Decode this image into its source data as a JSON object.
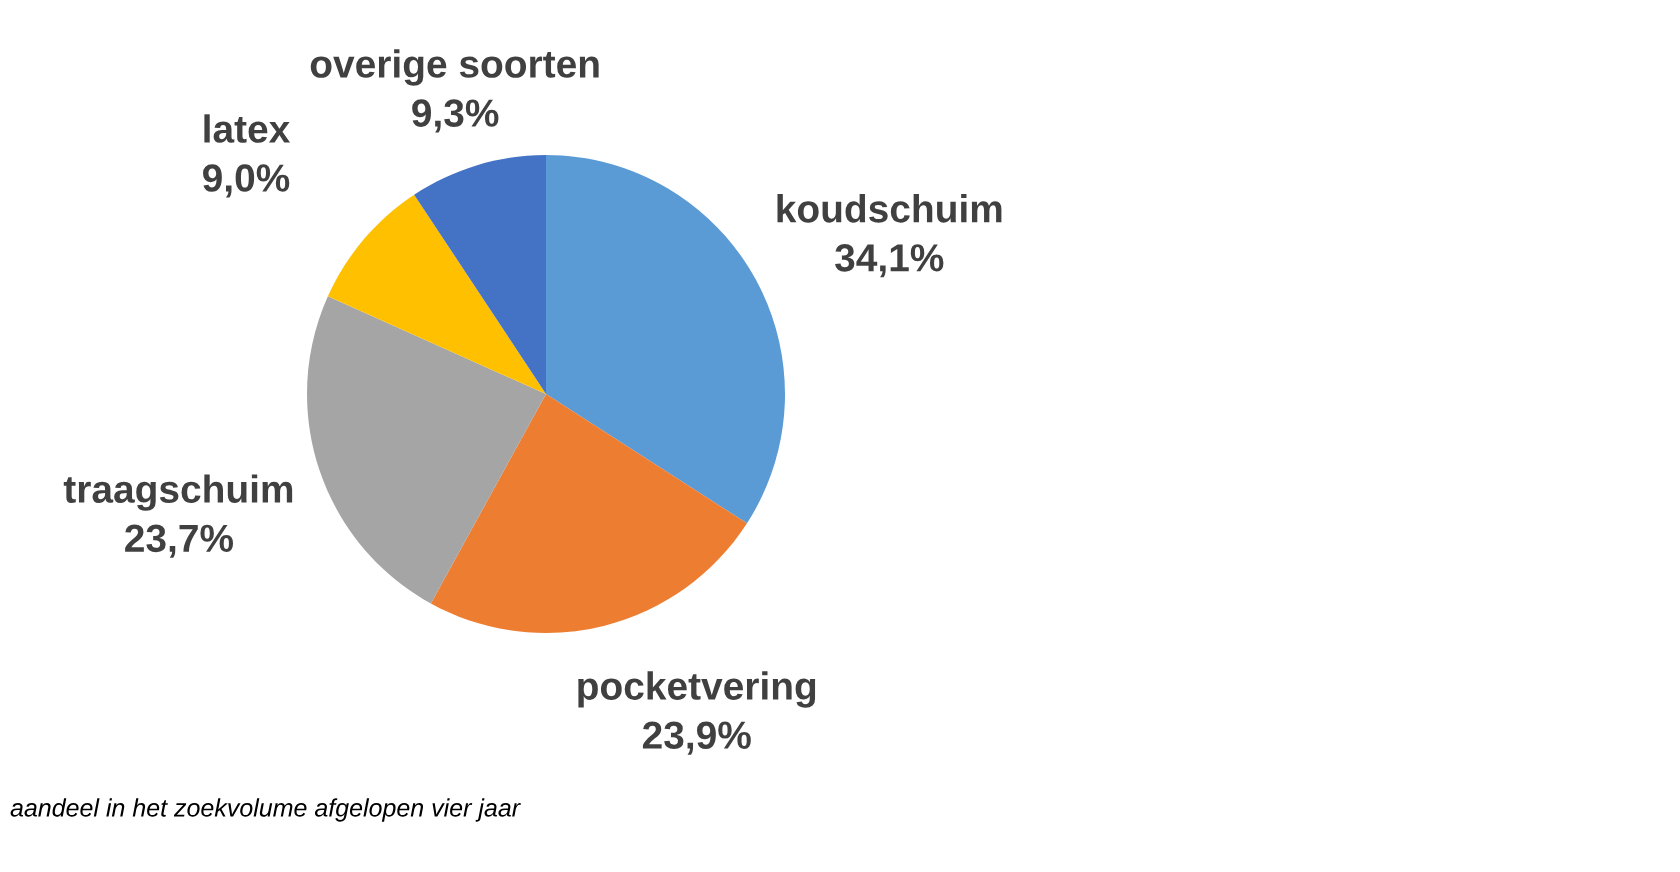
{
  "chart_data": {
    "type": "pie",
    "categories": [
      "koudschuim",
      "pocketvering",
      "traagschuim",
      "latex",
      "overige soorten"
    ],
    "values": [
      34.1,
      23.9,
      23.7,
      9.0,
      9.3
    ],
    "colors": [
      "#5b9bd5",
      "#ed7d31",
      "#a5a5a5",
      "#ffc000",
      "#4472c4"
    ],
    "value_labels": [
      "34,1%",
      "23,9%",
      "23,7%",
      "9,0%",
      "9,3%"
    ],
    "annotations": [
      "aandeel in het zoekvolume afgelopen vier jaar"
    ]
  }
}
